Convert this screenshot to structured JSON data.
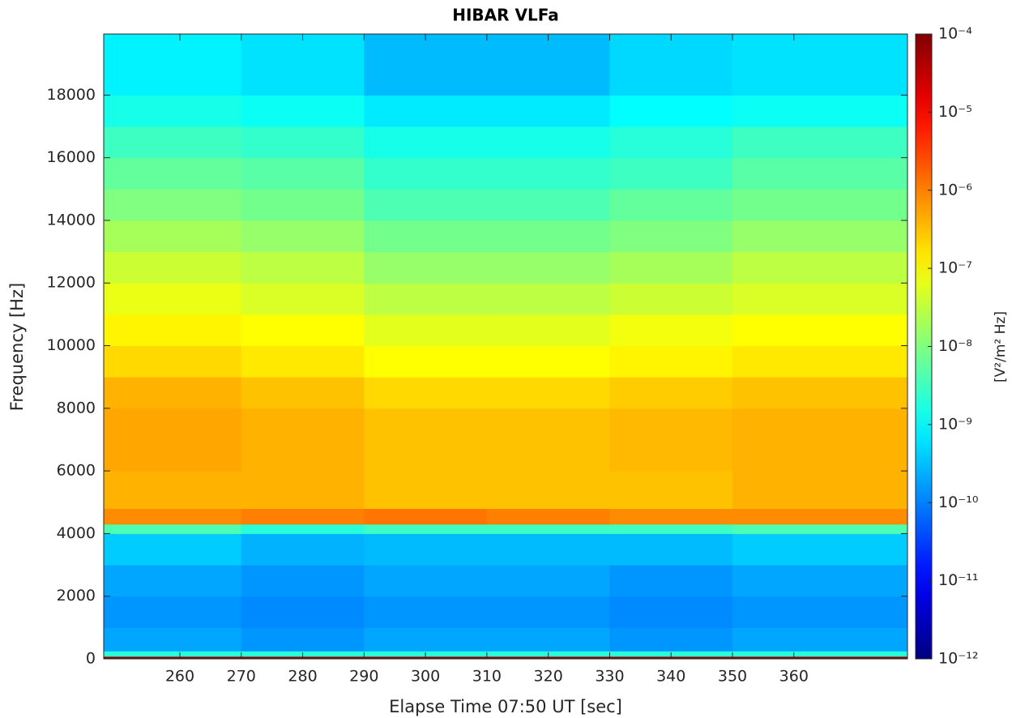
{
  "chart_data": {
    "type": "spectrogram",
    "title": "HIBAR VLFa",
    "x_label": "Elapse Time 07:50 UT [sec]",
    "y_label": "Frequency [Hz]",
    "colorbar_label": "[V²/m² Hz]",
    "x": [
      247.6,
      270,
      290,
      310,
      330,
      350,
      378.5
    ],
    "y": [
      0,
      80,
      250,
      1000,
      2000,
      3000,
      4000,
      4300,
      4800,
      6000,
      7000,
      8000,
      9000,
      10000,
      11000,
      12000,
      13000,
      14000,
      15000,
      16000,
      17000,
      18000,
      19950
    ],
    "values": [
      [
        8e-05,
        8e-05,
        8e-05,
        8e-05,
        8e-05,
        8e-05
      ],
      [
        2e-09,
        2e-09,
        2e-09,
        2e-09,
        2e-09,
        2e-09
      ],
      [
        2e-10,
        1.5e-10,
        2e-10,
        2e-10,
        1.5e-10,
        2e-10
      ],
      [
        1.5e-10,
        1.2e-10,
        1.5e-10,
        1.5e-10,
        1.2e-10,
        1.5e-10
      ],
      [
        2e-10,
        1.5e-10,
        2e-10,
        2e-10,
        1.5e-10,
        2e-10
      ],
      [
        4e-10,
        2.5e-10,
        3e-10,
        3e-10,
        3e-10,
        4e-10
      ],
      [
        4e-09,
        2e-09,
        3e-09,
        3e-09,
        3e-09,
        4e-09
      ],
      [
        8e-07,
        1e-06,
        1.2e-06,
        1e-06,
        8e-07,
        8e-07
      ],
      [
        4e-07,
        4e-07,
        3e-07,
        3e-07,
        3e-07,
        4e-07
      ],
      [
        5e-07,
        4e-07,
        3e-07,
        3e-07,
        3.5e-07,
        4e-07
      ],
      [
        5e-07,
        4e-07,
        3e-07,
        3e-07,
        3.5e-07,
        4e-07
      ],
      [
        4e-07,
        3e-07,
        2e-07,
        2e-07,
        2.5e-07,
        3e-07
      ],
      [
        2e-07,
        1.5e-07,
        1e-07,
        1e-07,
        1.2e-07,
        1.5e-07
      ],
      [
        1.2e-07,
        1e-07,
        6e-08,
        6e-08,
        8e-08,
        1e-07
      ],
      [
        7e-08,
        5e-08,
        3e-08,
        3e-08,
        4e-08,
        5e-08
      ],
      [
        4e-08,
        3e-08,
        1.5e-08,
        1.5e-08,
        2e-08,
        3e-08
      ],
      [
        2e-08,
        1.5e-08,
        8e-09,
        8e-09,
        1e-08,
        1.5e-08
      ],
      [
        1e-08,
        8e-09,
        4e-09,
        4e-09,
        6e-09,
        8e-09
      ],
      [
        6e-09,
        5e-09,
        2.5e-09,
        2.5e-09,
        3e-09,
        5e-09
      ],
      [
        3e-09,
        2.5e-09,
        1.5e-09,
        1.5e-09,
        2e-09,
        3e-09
      ],
      [
        1.5e-09,
        1.2e-09,
        7e-10,
        7e-10,
        1e-09,
        1.2e-09
      ],
      [
        8e-10,
        6e-10,
        3e-10,
        3e-10,
        5e-10,
        6e-10
      ],
      [
        4e-10,
        3e-10,
        2e-10,
        2e-10,
        3e-10,
        3e-10
      ]
    ],
    "xlim": [
      247.6,
      378.5
    ],
    "ylim": [
      0,
      19950
    ],
    "xticks": [
      260,
      270,
      280,
      290,
      300,
      310,
      320,
      330,
      340,
      350,
      360
    ],
    "yticks": [
      0,
      2000,
      4000,
      6000,
      8000,
      10000,
      12000,
      14000,
      16000,
      18000
    ],
    "colormap": "jet",
    "color_scale": "log",
    "clim": [
      1e-12,
      0.0001
    ],
    "cticks": [
      {
        "value": 1e-12,
        "label": "10⁻¹²"
      },
      {
        "value": 1e-11,
        "label": "10⁻¹¹"
      },
      {
        "value": 1e-10,
        "label": "10⁻¹⁰"
      },
      {
        "value": 1e-09,
        "label": "10⁻⁹"
      },
      {
        "value": 1e-08,
        "label": "10⁻⁸"
      },
      {
        "value": 1e-07,
        "label": "10⁻⁷"
      },
      {
        "value": 1e-06,
        "label": "10⁻⁶"
      },
      {
        "value": 1e-05,
        "label": "10⁻⁵"
      },
      {
        "value": 0.0001,
        "label": "10⁻⁴"
      }
    ]
  }
}
